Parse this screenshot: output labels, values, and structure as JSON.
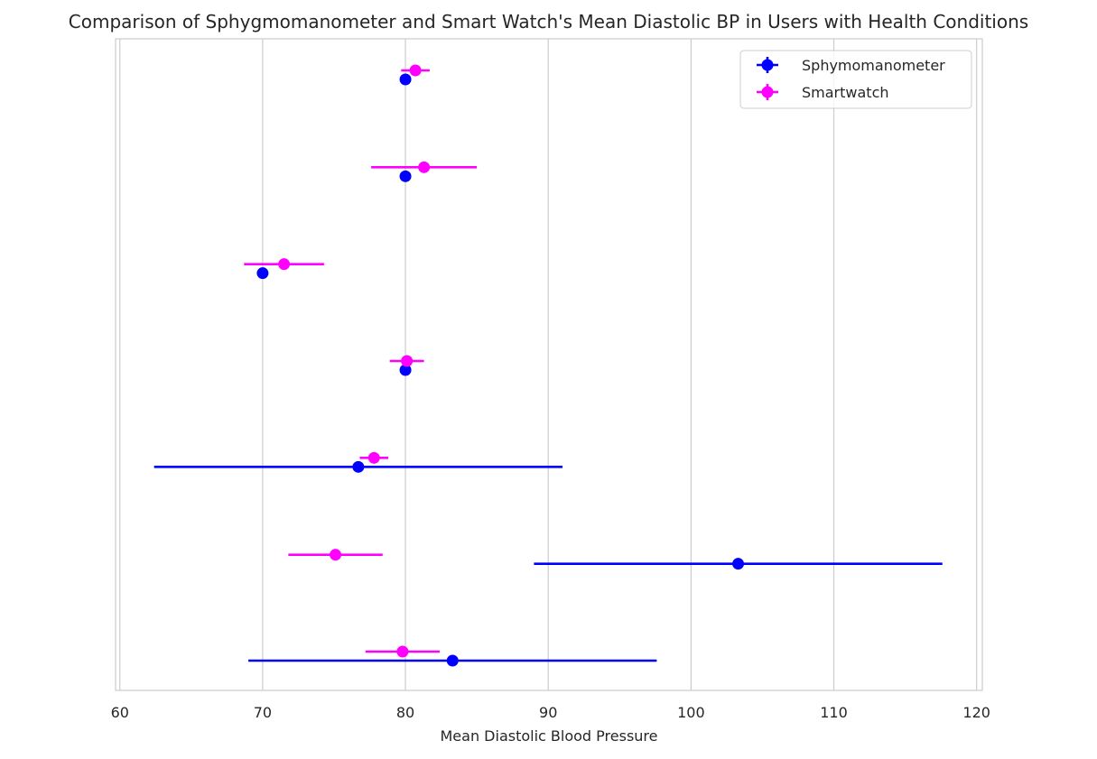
{
  "chart_data": {
    "type": "scatter",
    "title": "Comparison of Sphygmomanometer and Smart Watch's Mean Diastolic BP in Users with Health Conditions",
    "xlabel": "Mean Diastolic Blood Pressure",
    "ylabel": "",
    "xlim": [
      59.7,
      120.4
    ],
    "xticks": [
      60,
      70,
      80,
      90,
      100,
      110,
      120
    ],
    "grid": "vertical",
    "legend_position": "top-right",
    "series": [
      {
        "name": "Sphymomanometer",
        "color": "#0000ff",
        "points": [
          {
            "x": 80.0,
            "err": 0
          },
          {
            "x": 80.0,
            "err": 0
          },
          {
            "x": 70.0,
            "err": 0
          },
          {
            "x": 80.0,
            "err": 0
          },
          {
            "x": 76.7,
            "err": 14.3
          },
          {
            "x": 103.3,
            "err": 14.3
          },
          {
            "x": 83.3,
            "err": 14.3
          }
        ]
      },
      {
        "name": "Smartwatch",
        "color": "#ff00ff",
        "points": [
          {
            "x": 80.7,
            "err": 1.0
          },
          {
            "x": 81.3,
            "err": 3.7
          },
          {
            "x": 71.5,
            "err": 2.8
          },
          {
            "x": 80.1,
            "err": 1.2
          },
          {
            "x": 77.8,
            "err": 1.0
          },
          {
            "x": 75.1,
            "err": 3.3
          },
          {
            "x": 79.8,
            "err": 2.6
          }
        ]
      }
    ]
  }
}
